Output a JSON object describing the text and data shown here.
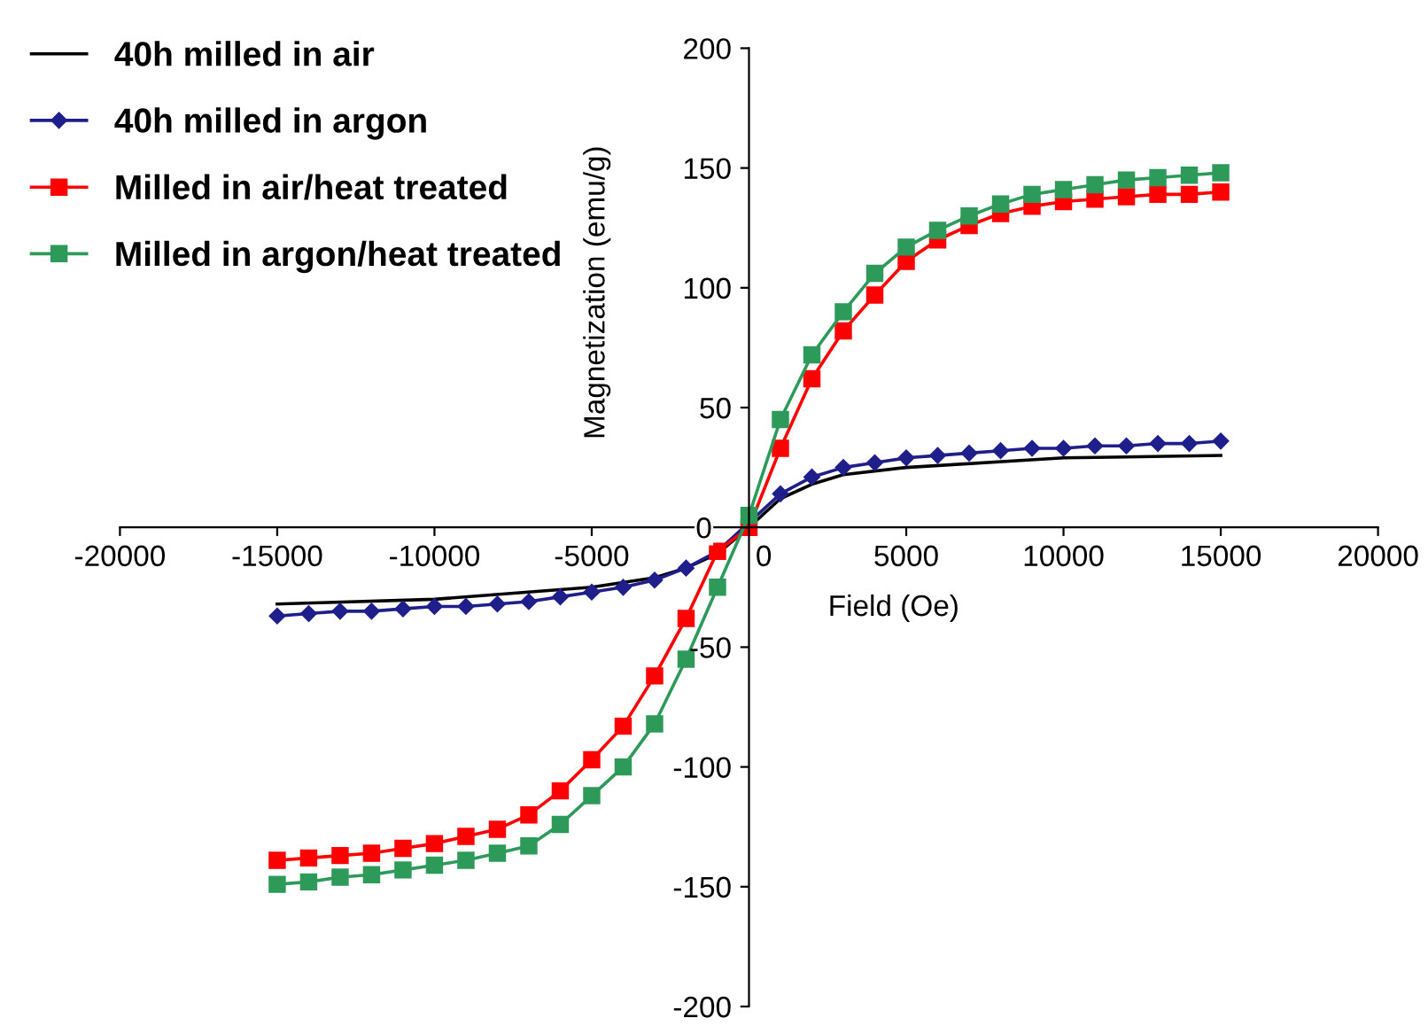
{
  "chart_data": {
    "type": "line",
    "xlabel": "Field (Oe)",
    "ylabel": "Magnetization (emu/g)",
    "xlim": [
      -20000,
      20000
    ],
    "xticks": [
      -20000,
      -15000,
      -10000,
      -5000,
      0,
      5000,
      10000,
      15000,
      20000
    ],
    "ylim": [
      -200,
      200
    ],
    "yticks": [
      -200,
      -150,
      -100,
      -50,
      0,
      50,
      100,
      150,
      200
    ],
    "grid": false,
    "legend": "top left",
    "series": [
      {
        "name": "40h milled in air",
        "color": "#000000",
        "marker": "none",
        "x": [
          -15000,
          -10000,
          -5000,
          -3000,
          -2000,
          -1000,
          0,
          500,
          1000,
          2000,
          3000,
          5000,
          10000,
          15000
        ],
        "values": [
          -32,
          -30,
          -25,
          -21,
          -17,
          -11,
          0,
          6,
          12,
          18,
          22,
          25,
          29,
          30
        ]
      },
      {
        "name": "40h milled in argon",
        "color": "#1f1f8c",
        "marker": "diamond",
        "x": [
          -15000,
          -14000,
          -13000,
          -12000,
          -11000,
          -10000,
          -9000,
          -8000,
          -7000,
          -6000,
          -5000,
          -4000,
          -3000,
          -2000,
          -1000,
          0,
          1000,
          2000,
          3000,
          4000,
          5000,
          6000,
          7000,
          8000,
          9000,
          10000,
          11000,
          12000,
          13000,
          14000,
          15000
        ],
        "values": [
          -37,
          -36,
          -35,
          -35,
          -34,
          -33,
          -33,
          -32,
          -31,
          -29,
          -27,
          -25,
          -22,
          -17,
          -10,
          2,
          14,
          21,
          25,
          27,
          29,
          30,
          31,
          32,
          33,
          33,
          34,
          34,
          35,
          35,
          36
        ]
      },
      {
        "name": "Milled in air/heat treated",
        "color": "#ff0000",
        "marker": "square",
        "x": [
          -15000,
          -14000,
          -13000,
          -12000,
          -11000,
          -10000,
          -9000,
          -8000,
          -7000,
          -6000,
          -5000,
          -4000,
          -3000,
          -2000,
          -1000,
          0,
          1000,
          2000,
          3000,
          4000,
          5000,
          6000,
          7000,
          8000,
          9000,
          10000,
          11000,
          12000,
          13000,
          14000,
          15000
        ],
        "values": [
          -139,
          -138,
          -137,
          -136,
          -134,
          -132,
          -129,
          -126,
          -120,
          -110,
          -97,
          -83,
          -62,
          -38,
          -10,
          0,
          33,
          62,
          82,
          97,
          111,
          120,
          126,
          131,
          134,
          136,
          137,
          138,
          139,
          139,
          140
        ]
      },
      {
        "name": "Milled in argon/heat treated",
        "color": "#2e9a5a",
        "marker": "square",
        "x": [
          -15000,
          -14000,
          -13000,
          -12000,
          -11000,
          -10000,
          -9000,
          -8000,
          -7000,
          -6000,
          -5000,
          -4000,
          -3000,
          -2000,
          -1000,
          0,
          1000,
          2000,
          3000,
          4000,
          5000,
          6000,
          7000,
          8000,
          9000,
          10000,
          11000,
          12000,
          13000,
          14000,
          15000
        ],
        "values": [
          -149,
          -148,
          -146,
          -145,
          -143,
          -141,
          -139,
          -136,
          -133,
          -124,
          -112,
          -100,
          -82,
          -55,
          -25,
          5,
          45,
          72,
          90,
          106,
          117,
          124,
          130,
          135,
          139,
          141,
          143,
          145,
          146,
          147,
          148
        ]
      }
    ]
  }
}
